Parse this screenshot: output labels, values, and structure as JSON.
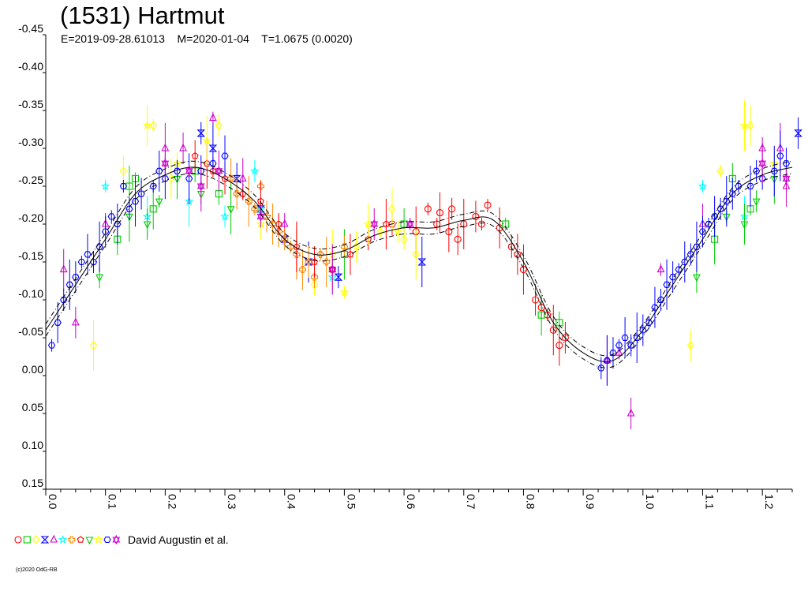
{
  "title": "(1531) Hartmut",
  "subtitle": "E=2019-09-28.61013    M=2020-01-04    T=1.0675 (0.0020)",
  "legend_text": "David Augustin et al.",
  "copyright": "(c)2020 OdG-RB",
  "chart_data": {
    "type": "scatter",
    "xlabel": "",
    "ylabel": "",
    "xlim": [
      0.0,
      1.25
    ],
    "ylim": [
      0.15,
      -0.45
    ],
    "y_reversed": true,
    "x_ticks": [
      "0.0",
      "0.1",
      "0.2",
      "0.3",
      "0.4",
      "0.5",
      "0.6",
      "0.7",
      "0.8",
      "0.9",
      "1.0",
      "1.1",
      "1.2"
    ],
    "y_ticks": [
      "-0.45",
      "-0.40",
      "-0.35",
      "-0.30",
      "-0.25",
      "-0.20",
      "-0.15",
      "-0.10",
      "-0.05",
      "0.00",
      "0.05",
      "0.10",
      "0.15"
    ],
    "grid": false,
    "legend_position": "bottom-left",
    "colors": [
      "#ff0000",
      "#00cc00",
      "#ffff00",
      "#0000ff",
      "#cc00cc",
      "#00ffff",
      "#ff8800",
      "#ff0000",
      "#00cc00",
      "#ffff00",
      "#0000ff",
      "#cc00cc"
    ],
    "symbols": [
      "circle",
      "square",
      "diamond",
      "hourglass",
      "triangle-up",
      "star",
      "cross",
      "pentagon",
      "triangle-down",
      "star",
      "hexagon",
      "asterisk"
    ],
    "fit_curve": {
      "x": [
        0.0,
        0.05,
        0.1,
        0.15,
        0.2,
        0.25,
        0.3,
        0.35,
        0.4,
        0.45,
        0.5,
        0.55,
        0.6,
        0.65,
        0.7,
        0.75,
        0.8,
        0.85,
        0.9,
        0.95,
        1.0,
        1.05,
        1.1,
        1.15,
        1.2,
        1.25
      ],
      "y": [
        -0.06,
        -0.12,
        -0.18,
        -0.24,
        -0.265,
        -0.275,
        -0.26,
        -0.23,
        -0.18,
        -0.16,
        -0.165,
        -0.185,
        -0.195,
        -0.195,
        -0.205,
        -0.205,
        -0.15,
        -0.07,
        -0.03,
        -0.02,
        -0.06,
        -0.12,
        -0.18,
        -0.24,
        -0.265,
        -0.275
      ],
      "band": 0.008
    },
    "series": [
      {
        "values": [
          [
            0.64,
            -0.22
          ],
          [
            0.66,
            -0.215
          ],
          [
            0.68,
            -0.22
          ],
          [
            0.7,
            -0.2
          ],
          [
            0.72,
            -0.21
          ],
          [
            0.74,
            -0.225
          ],
          [
            0.76,
            -0.195
          ],
          [
            0.78,
            -0.17
          ],
          [
            0.8,
            -0.14
          ],
          [
            0.82,
            -0.1
          ],
          [
            0.84,
            -0.08
          ],
          [
            0.86,
            -0.04
          ],
          [
            0.58,
            -0.2
          ],
          [
            0.62,
            -0.19
          ],
          [
            0.69,
            -0.18
          ],
          [
            0.73,
            -0.2
          ],
          [
            0.79,
            -0.16
          ],
          [
            0.83,
            -0.09
          ],
          [
            0.85,
            -0.06
          ],
          [
            0.87,
            -0.05
          ],
          [
            0.655,
            -0.2
          ],
          [
            0.675,
            -0.19
          ]
        ]
      },
      {
        "values": [
          [
            0.12,
            -0.18
          ],
          [
            0.15,
            -0.26
          ],
          [
            0.18,
            -0.22
          ],
          [
            0.29,
            -0.24
          ],
          [
            0.5,
            -0.16
          ],
          [
            0.6,
            -0.2
          ],
          [
            0.77,
            -0.2
          ],
          [
            0.83,
            -0.08
          ],
          [
            0.86,
            -0.07
          ],
          [
            1.12,
            -0.18
          ],
          [
            1.15,
            -0.26
          ],
          [
            1.18,
            -0.22
          ],
          [
            0.14,
            -0.25
          ],
          [
            0.25,
            -0.27
          ]
        ]
      },
      {
        "values": [
          [
            0.08,
            -0.04
          ],
          [
            0.13,
            -0.27
          ],
          [
            0.18,
            -0.33
          ],
          [
            0.21,
            -0.26
          ],
          [
            0.29,
            -0.33
          ],
          [
            0.48,
            -0.16
          ],
          [
            0.52,
            -0.17
          ],
          [
            0.56,
            -0.19
          ],
          [
            0.58,
            -0.22
          ],
          [
            0.6,
            -0.18
          ],
          [
            0.62,
            -0.16
          ],
          [
            1.08,
            -0.04
          ],
          [
            1.13,
            -0.27
          ],
          [
            1.18,
            -0.33
          ],
          [
            0.45,
            -0.12
          ]
        ]
      },
      {
        "values": [
          [
            0.26,
            -0.32
          ],
          [
            0.28,
            -0.3
          ],
          [
            0.32,
            -0.26
          ],
          [
            0.4,
            -0.18
          ],
          [
            0.44,
            -0.15
          ],
          [
            0.49,
            -0.13
          ],
          [
            0.63,
            -0.15
          ],
          [
            1.26,
            -0.32
          ],
          [
            0.36,
            -0.22
          ]
        ]
      },
      {
        "values": [
          [
            0.03,
            -0.14
          ],
          [
            0.1,
            -0.2
          ],
          [
            0.2,
            -0.3
          ],
          [
            0.23,
            -0.3
          ],
          [
            0.28,
            -0.34
          ],
          [
            0.33,
            -0.26
          ],
          [
            0.4,
            -0.2
          ],
          [
            0.94,
            -0.02
          ],
          [
            0.98,
            0.05
          ],
          [
            1.03,
            -0.14
          ],
          [
            1.1,
            -0.2
          ],
          [
            1.2,
            -0.3
          ],
          [
            1.23,
            -0.3
          ],
          [
            0.05,
            -0.07
          ],
          [
            0.96,
            -0.03
          ],
          [
            1.24,
            -0.25
          ]
        ]
      },
      {
        "values": [
          [
            0.1,
            -0.25
          ],
          [
            0.17,
            -0.21
          ],
          [
            0.3,
            -0.21
          ],
          [
            0.36,
            -0.22
          ],
          [
            0.48,
            -0.13
          ],
          [
            1.1,
            -0.25
          ],
          [
            1.17,
            -0.21
          ],
          [
            0.35,
            -0.27
          ],
          [
            0.24,
            -0.23
          ]
        ]
      },
      {
        "values": [
          [
            0.32,
            -0.24
          ],
          [
            0.35,
            -0.22
          ],
          [
            0.38,
            -0.2
          ],
          [
            0.4,
            -0.18
          ],
          [
            0.42,
            -0.16
          ],
          [
            0.44,
            -0.15
          ],
          [
            0.46,
            -0.16
          ],
          [
            0.48,
            -0.14
          ],
          [
            0.5,
            -0.17
          ],
          [
            0.34,
            -0.23
          ],
          [
            0.37,
            -0.21
          ],
          [
            0.41,
            -0.17
          ],
          [
            0.43,
            -0.14
          ],
          [
            0.45,
            -0.13
          ],
          [
            0.47,
            -0.15
          ],
          [
            0.39,
            -0.19
          ],
          [
            0.36,
            -0.25
          ],
          [
            0.31,
            -0.26
          ]
        ]
      },
      {
        "values": [
          [
            0.27,
            -0.28
          ],
          [
            0.3,
            -0.26
          ],
          [
            0.33,
            -0.24
          ],
          [
            0.36,
            -0.23
          ],
          [
            0.39,
            -0.2
          ],
          [
            0.42,
            -0.17
          ],
          [
            0.45,
            -0.15
          ],
          [
            0.48,
            -0.14
          ],
          [
            0.51,
            -0.16
          ],
          [
            0.54,
            -0.18
          ],
          [
            0.57,
            -0.2
          ],
          [
            0.25,
            -0.29
          ],
          [
            0.28,
            -0.27
          ]
        ]
      },
      {
        "values": [
          [
            0.09,
            -0.13
          ],
          [
            0.14,
            -0.21
          ],
          [
            0.17,
            -0.2
          ],
          [
            0.19,
            -0.23
          ],
          [
            0.22,
            -0.26
          ],
          [
            0.26,
            -0.24
          ],
          [
            0.31,
            -0.22
          ],
          [
            1.09,
            -0.13
          ],
          [
            1.14,
            -0.21
          ],
          [
            1.17,
            -0.2
          ],
          [
            1.19,
            -0.23
          ],
          [
            1.22,
            -0.26
          ]
        ]
      },
      {
        "values": [
          [
            0.17,
            -0.33
          ],
          [
            0.22,
            -0.28
          ],
          [
            0.27,
            -0.31
          ],
          [
            0.36,
            -0.2
          ],
          [
            0.5,
            -0.11
          ],
          [
            0.54,
            -0.2
          ],
          [
            0.59,
            -0.19
          ],
          [
            1.17,
            -0.33
          ],
          [
            1.22,
            -0.28
          ]
        ]
      },
      {
        "values": [
          [
            0.01,
            -0.04
          ],
          [
            0.02,
            -0.07
          ],
          [
            0.03,
            -0.1
          ],
          [
            0.04,
            -0.12
          ],
          [
            0.05,
            -0.13
          ],
          [
            0.06,
            -0.15
          ],
          [
            0.07,
            -0.16
          ],
          [
            0.08,
            -0.15
          ],
          [
            0.09,
            -0.17
          ],
          [
            0.1,
            -0.19
          ],
          [
            0.11,
            -0.21
          ],
          [
            0.12,
            -0.2
          ],
          [
            0.14,
            -0.22
          ],
          [
            0.15,
            -0.23
          ],
          [
            0.16,
            -0.24
          ],
          [
            0.18,
            -0.25
          ],
          [
            0.2,
            -0.26
          ],
          [
            0.22,
            -0.27
          ],
          [
            0.24,
            -0.26
          ],
          [
            0.26,
            -0.27
          ],
          [
            0.28,
            -0.28
          ],
          [
            0.3,
            -0.29
          ],
          [
            0.93,
            -0.01
          ],
          [
            0.94,
            -0.02
          ],
          [
            0.95,
            -0.03
          ],
          [
            0.96,
            -0.04
          ],
          [
            0.97,
            -0.05
          ],
          [
            0.98,
            -0.04
          ],
          [
            0.99,
            -0.05
          ],
          [
            1.0,
            -0.06
          ],
          [
            1.01,
            -0.07
          ],
          [
            1.02,
            -0.09
          ],
          [
            1.03,
            -0.1
          ],
          [
            1.04,
            -0.12
          ],
          [
            1.05,
            -0.13
          ],
          [
            1.06,
            -0.14
          ],
          [
            1.07,
            -0.15
          ],
          [
            1.08,
            -0.16
          ],
          [
            1.09,
            -0.17
          ],
          [
            1.1,
            -0.19
          ],
          [
            1.11,
            -0.2
          ],
          [
            1.12,
            -0.21
          ],
          [
            1.13,
            -0.22
          ],
          [
            1.14,
            -0.23
          ],
          [
            1.15,
            -0.24
          ],
          [
            1.16,
            -0.25
          ],
          [
            1.18,
            -0.25
          ],
          [
            1.2,
            -0.26
          ],
          [
            1.22,
            -0.27
          ],
          [
            1.24,
            -0.28
          ],
          [
            0.13,
            -0.25
          ],
          [
            0.19,
            -0.27
          ],
          [
            1.19,
            -0.27
          ],
          [
            1.23,
            -0.29
          ]
        ]
      },
      {
        "values": [
          [
            0.2,
            -0.28
          ],
          [
            0.24,
            -0.27
          ],
          [
            0.29,
            -0.27
          ],
          [
            0.36,
            -0.21
          ],
          [
            0.48,
            -0.14
          ],
          [
            0.55,
            -0.2
          ],
          [
            0.61,
            -0.2
          ],
          [
            1.2,
            -0.28
          ],
          [
            1.24,
            -0.26
          ],
          [
            0.26,
            -0.25
          ]
        ]
      }
    ]
  }
}
